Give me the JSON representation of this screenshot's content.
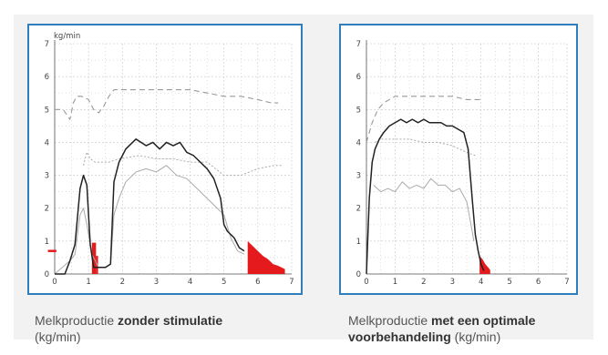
{
  "colors": {
    "frame": "#2f7fbf",
    "panel_bg": "#f2f2f2",
    "flow_line": "#222222",
    "secondary_line": "#aaaaaa",
    "dashed_line": "#999999",
    "red_fill": "#e41a1c",
    "grid": "#c8c8c8"
  },
  "captions": {
    "left": {
      "prefix": "Melkproductie ",
      "bold": "zonder stimulatie",
      "suffix": " (kg/min)"
    },
    "right": {
      "prefix": "Melkproductie ",
      "bold": "met een optimale voorbehandeling",
      "suffix": " (kg/min)"
    }
  },
  "chart_data": [
    {
      "type": "line",
      "title": "",
      "corner_label": "kg/min",
      "xlabel": "",
      "ylabel": "",
      "xlim": [
        0,
        7
      ],
      "ylim": [
        0,
        7
      ],
      "x_ticks": [
        "0",
        "1",
        "2",
        "3",
        "4",
        "5",
        "6",
        "7"
      ],
      "y_ticks": [
        "0",
        "1",
        "2",
        "3",
        "4",
        "5",
        "6",
        "7"
      ],
      "grid": true,
      "series": [
        {
          "style": "solid-dark",
          "x": [
            0,
            0.3,
            0.45,
            0.6,
            0.75,
            0.85,
            0.95,
            1.05,
            1.15,
            1.3,
            1.5,
            1.65,
            1.75,
            1.9,
            2.1,
            2.4,
            2.7,
            2.9,
            3.1,
            3.3,
            3.5,
            3.7,
            3.9,
            4.1,
            4.3,
            4.5,
            4.7,
            4.9,
            5.0,
            5.1,
            5.2,
            5.3,
            5.45,
            5.6
          ],
          "y": [
            0,
            0,
            0.4,
            0.9,
            2.6,
            3.0,
            2.7,
            0.9,
            0.2,
            0.2,
            0.2,
            0.3,
            2.8,
            3.4,
            3.8,
            4.1,
            3.9,
            4.0,
            3.8,
            4.0,
            3.9,
            4.0,
            3.7,
            3.6,
            3.4,
            3.2,
            2.9,
            2.3,
            1.5,
            1.3,
            1.2,
            1.1,
            0.8,
            0.7
          ]
        },
        {
          "style": "solid-light",
          "x": [
            0,
            0.45,
            0.6,
            0.75,
            0.85,
            0.95,
            1.1,
            1.3,
            1.5,
            1.65,
            1.75,
            1.9,
            2.1,
            2.4,
            2.7,
            3.0,
            3.3,
            3.6,
            3.9,
            4.2,
            4.5,
            4.8,
            5.0,
            5.2,
            5.4,
            5.6
          ],
          "y": [
            0,
            0.4,
            0.6,
            1.8,
            2.0,
            1.5,
            0.6,
            0.2,
            0.2,
            0.3,
            1.8,
            2.3,
            2.8,
            3.1,
            3.2,
            3.1,
            3.3,
            3.0,
            2.9,
            2.6,
            2.3,
            2.0,
            1.8,
            1.1,
            0.7,
            0.6
          ]
        },
        {
          "style": "dashed",
          "x": [
            0,
            0.25,
            0.45,
            0.55,
            0.65,
            0.8,
            1.0,
            1.15,
            1.3,
            1.45,
            1.6,
            1.75,
            2.0,
            2.5,
            3.0,
            3.5,
            4.0,
            4.5,
            5.0,
            5.5,
            6.0,
            6.4,
            6.6
          ],
          "y": [
            5.0,
            5.0,
            4.7,
            5.2,
            5.4,
            5.4,
            5.3,
            5.0,
            4.9,
            5.1,
            5.4,
            5.6,
            5.6,
            5.6,
            5.6,
            5.6,
            5.6,
            5.5,
            5.4,
            5.4,
            5.3,
            5.2,
            5.2
          ]
        },
        {
          "style": "dotted",
          "x": [
            0.85,
            0.95,
            1.05,
            1.2,
            1.4,
            1.6,
            1.9,
            2.5,
            3.0,
            3.5,
            4.0,
            4.5,
            5.0,
            5.5,
            6.0,
            6.5,
            6.7
          ],
          "y": [
            3.3,
            3.7,
            3.5,
            3.4,
            3.4,
            3.4,
            3.5,
            3.6,
            3.5,
            3.5,
            3.4,
            3.4,
            3.0,
            3.0,
            3.2,
            3.3,
            3.3
          ]
        }
      ],
      "red_fill": {
        "x": [
          5.7,
          5.7,
          5.85,
          6.0,
          6.15,
          6.3,
          6.45,
          6.6,
          6.8,
          6.8
        ],
        "y": [
          0,
          1.0,
          0.85,
          0.7,
          0.55,
          0.45,
          0.3,
          0.25,
          0.15,
          0
        ]
      },
      "red_bars": [
        {
          "x": [
            1.1,
            1.22
          ],
          "y": 0.95
        },
        {
          "x": [
            1.22,
            1.28
          ],
          "y": 0.55
        }
      ],
      "red_tick": {
        "x": [
          -0.2,
          0.05
        ],
        "y": 0.7
      }
    },
    {
      "type": "line",
      "title": "",
      "corner_label": "",
      "xlabel": "",
      "ylabel": "",
      "xlim": [
        0,
        7
      ],
      "ylim": [
        0,
        7
      ],
      "x_ticks": [
        "0",
        "1",
        "2",
        "3",
        "4",
        "5",
        "6",
        "7"
      ],
      "y_ticks": [
        "0",
        "1",
        "2",
        "3",
        "4",
        "5",
        "6",
        "7"
      ],
      "grid": true,
      "series": [
        {
          "style": "solid-dark",
          "x": [
            0,
            0.1,
            0.2,
            0.3,
            0.45,
            0.6,
            0.8,
            1.0,
            1.2,
            1.4,
            1.6,
            1.8,
            2.0,
            2.2,
            2.4,
            2.6,
            2.8,
            3.0,
            3.2,
            3.4,
            3.55,
            3.7,
            3.8,
            3.9,
            4.0,
            4.1
          ],
          "y": [
            0,
            2.3,
            3.4,
            3.8,
            4.1,
            4.3,
            4.5,
            4.6,
            4.7,
            4.6,
            4.7,
            4.6,
            4.7,
            4.6,
            4.6,
            4.6,
            4.5,
            4.5,
            4.4,
            4.3,
            3.8,
            2.2,
            1.2,
            0.7,
            0.3,
            0.1
          ]
        },
        {
          "style": "solid-light",
          "x": [
            0.25,
            0.5,
            0.75,
            1.0,
            1.25,
            1.5,
            1.75,
            2.0,
            2.25,
            2.5,
            2.75,
            3.0,
            3.25,
            3.5,
            3.65,
            3.75
          ],
          "y": [
            2.7,
            2.5,
            2.6,
            2.5,
            2.8,
            2.6,
            2.7,
            2.6,
            2.9,
            2.7,
            2.7,
            2.5,
            2.6,
            2.2,
            1.5,
            1.0
          ]
        },
        {
          "style": "dashed",
          "x": [
            0,
            0.2,
            0.4,
            0.6,
            0.8,
            1.0,
            1.5,
            2.0,
            2.5,
            3.0,
            3.5,
            4.0
          ],
          "y": [
            4.0,
            4.6,
            5.0,
            5.2,
            5.3,
            5.4,
            5.4,
            5.4,
            5.4,
            5.4,
            5.3,
            5.3
          ]
        },
        {
          "style": "dotted",
          "x": [
            0.3,
            0.5,
            0.8,
            1.0,
            1.5,
            2.0,
            2.5,
            3.0,
            3.5,
            3.8
          ],
          "y": [
            4.0,
            4.1,
            4.1,
            4.1,
            4.1,
            4.0,
            4.0,
            3.9,
            3.7,
            3.6
          ]
        }
      ],
      "red_fill": {
        "x": [
          3.95,
          3.95,
          4.05,
          4.15,
          4.25,
          4.32,
          4.32
        ],
        "y": [
          0,
          0.55,
          0.45,
          0.3,
          0.2,
          0.12,
          0
        ]
      },
      "red_bars": [],
      "red_tick": null
    }
  ]
}
